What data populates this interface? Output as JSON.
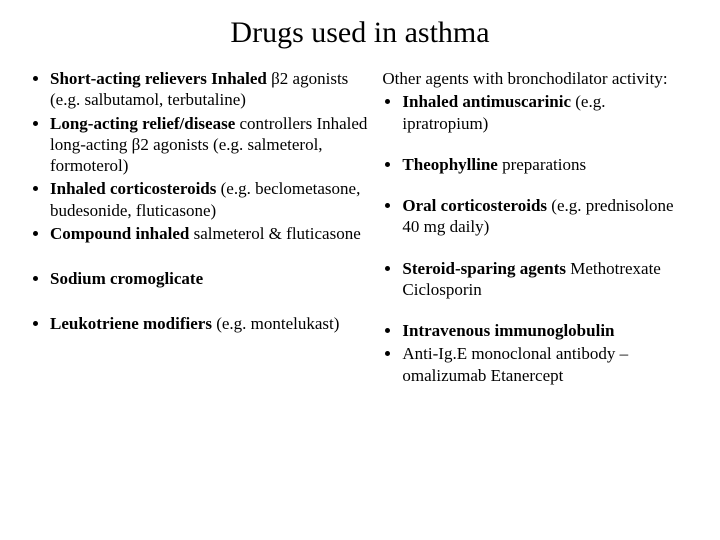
{
  "title": "Drugs used in asthma",
  "left": {
    "items": [
      {
        "bold": "Short-acting relievers Inhaled",
        "after_bold": " β2 agonists (e.g. salbutamol, terbutaline)"
      },
      {
        "bold": "Long-acting relief/disease",
        "after_bold": " controllers Inhaled long-acting β2 agonists (e.g. salmeterol, formoterol)"
      },
      {
        "bold": "Inhaled corticosteroids",
        "after_bold": " (e.g. beclometasone, budesonide, fluticasone)"
      },
      {
        "bold": "Compound inhaled",
        "after_bold": " salmeterol & fluticasone"
      }
    ],
    "item5": {
      "bold": "Sodium cromoglicate",
      "after_bold": ""
    },
    "item6": {
      "bold": "Leukotriene modifiers",
      "after_bold": " (e.g. montelukast)"
    }
  },
  "right": {
    "lead": "Other agents with bronchodilator activity:",
    "items1": [
      {
        "bold": "Inhaled antimuscarinic",
        "after_bold": "  (e.g. ipratropium)"
      }
    ],
    "items2": [
      {
        "bold": "Theophylline",
        "after_bold": " preparations"
      }
    ],
    "items3": [
      {
        "bold": "Oral corticosteroids",
        "after_bold": " (e.g. prednisolone 40 mg daily)"
      }
    ],
    "items4": [
      {
        "bold": "Steroid-sparing agents",
        "after_bold": " Methotrexate Ciclosporin"
      }
    ],
    "items5": [
      {
        "bold": "Intravenous immunoglobulin",
        "after_bold": ""
      },
      {
        "bold": "",
        "after_bold": "Anti-Ig.E monoclonal antibody – omalizumab Etanercept"
      }
    ]
  }
}
